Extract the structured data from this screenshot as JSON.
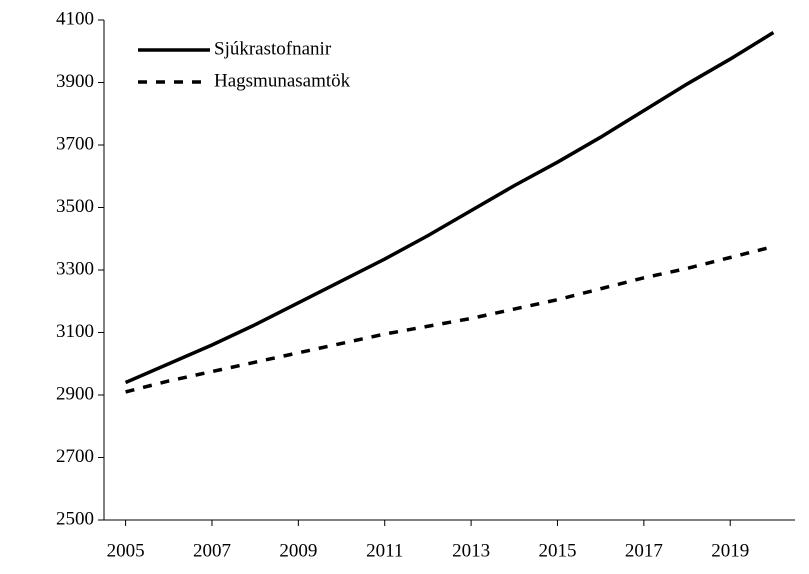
{
  "chart_data": {
    "type": "line",
    "categories": [
      "2005",
      null,
      "2007",
      null,
      "2009",
      null,
      "2011",
      null,
      "2013",
      null,
      "2015",
      null,
      "2017",
      null,
      "2019",
      null
    ],
    "series": [
      {
        "name": "Sjúkrastofnanir",
        "color": "#000000",
        "dash": "solid",
        "values": [
          2940,
          3000,
          3060,
          3125,
          3195,
          3265,
          3335,
          3410,
          3490,
          3570,
          3645,
          3725,
          3810,
          3895,
          3975,
          4060
        ]
      },
      {
        "name": "Hagsmunasamtök",
        "color": "#000000",
        "dash": "dashed",
        "values": [
          2910,
          2945,
          2975,
          3005,
          3035,
          3065,
          3095,
          3120,
          3145,
          3175,
          3205,
          3240,
          3275,
          3305,
          3340,
          3375
        ]
      }
    ],
    "ylim": [
      2500,
      4100
    ],
    "yticks": [
      2500,
      2700,
      2900,
      3100,
      3300,
      3500,
      3700,
      3900,
      4100
    ],
    "legend": "top-left"
  }
}
